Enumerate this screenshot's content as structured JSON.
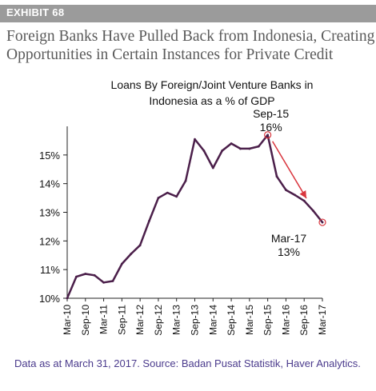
{
  "exhibit_label": "EXHIBIT 68",
  "headline_line1": "Foreign Banks Have Pulled Back from Indonesia, Creating",
  "headline_line2": "Opportunities in Certain Instances for Private Credit",
  "source_note": "Data as at March 31, 2017. Source: Badan Pusat Statistik, Haver Analytics.",
  "colors": {
    "exhibit_bar": "#9b9b9b",
    "headline": "#5a5a5a",
    "line": "#4b1f4a",
    "marker": "#d9363e",
    "arrow": "#d9363e",
    "source": "#4a3a8c"
  },
  "chart_data": {
    "type": "line",
    "title_line1": "Loans By Foreign/Joint Venture Banks in",
    "title_line2": "Indonesia as a % of GDP",
    "xlabel": "",
    "ylabel": "",
    "ylim": [
      10,
      16
    ],
    "grid": false,
    "y_ticks": [
      10,
      11,
      12,
      13,
      14,
      15
    ],
    "y_tick_labels": [
      "10%",
      "11%",
      "12%",
      "13%",
      "14%",
      "15%"
    ],
    "x_tick_labels": [
      "Mar-10",
      "Sep-10",
      "Mar-11",
      "Sep-11",
      "Mar-12",
      "Sep-12",
      "Mar-13",
      "Sep-13",
      "Mar-14",
      "Sep-14",
      "Mar-15",
      "Sep-15",
      "Mar-16",
      "Sep-16",
      "Mar-17"
    ],
    "x": [
      "Mar-10",
      "Jun-10",
      "Sep-10",
      "Dec-10",
      "Mar-11",
      "Jun-11",
      "Sep-11",
      "Dec-11",
      "Mar-12",
      "Jun-12",
      "Sep-12",
      "Dec-12",
      "Mar-13",
      "Jun-13",
      "Sep-13",
      "Dec-13",
      "Mar-14",
      "Jun-14",
      "Sep-14",
      "Dec-14",
      "Mar-15",
      "Jun-15",
      "Sep-15",
      "Dec-15",
      "Mar-16",
      "Jun-16",
      "Sep-16",
      "Dec-16",
      "Mar-17"
    ],
    "values": [
      10.0,
      10.75,
      10.85,
      10.8,
      10.55,
      10.6,
      11.2,
      11.55,
      11.85,
      12.7,
      13.5,
      13.68,
      13.55,
      14.1,
      15.55,
      15.15,
      14.55,
      15.15,
      15.4,
      15.22,
      15.22,
      15.3,
      15.7,
      14.25,
      13.78,
      13.6,
      13.4,
      13.05,
      12.65
    ],
    "annotations": [
      {
        "index": 22,
        "label_line1": "Sep-15",
        "label_line2": "16%"
      },
      {
        "index": 28,
        "label_line1": "Mar-17",
        "label_line2": "13%"
      }
    ]
  }
}
